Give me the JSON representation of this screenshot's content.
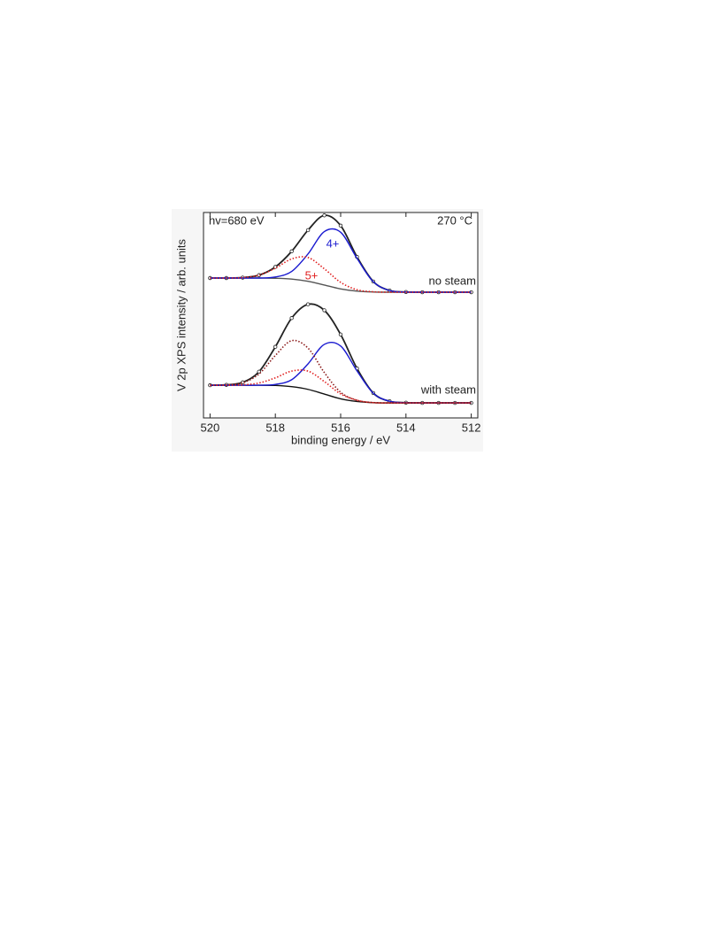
{
  "chart_data": {
    "type": "line",
    "xlabel": "binding energy / eV",
    "ylabel": "V 2p XPS intensity / arb. units",
    "xlim": [
      520.2,
      511.8
    ],
    "ylim": [
      0,
      10
    ],
    "xticks": [
      520,
      518,
      516,
      514,
      512
    ],
    "annotations": [
      "hv=680 eV",
      "270 °C",
      "4+",
      "5+",
      "no steam",
      "with steam"
    ],
    "annotation_colors": [
      "#222222",
      "#222222",
      "#1a1ad0",
      "#e02020",
      "#222222",
      "#222222"
    ],
    "x": [
      520,
      519.5,
      519,
      518.5,
      518,
      517.5,
      517,
      516.5,
      516,
      515.5,
      515,
      514.5,
      514,
      513.5,
      513,
      512.5,
      512
    ],
    "series": [
      {
        "color": "#222222",
        "style": "markers",
        "values": [
          6.81,
          6.81,
          6.83,
          6.95,
          7.35,
          8.11,
          9.14,
          9.86,
          9.36,
          7.84,
          6.64,
          6.2,
          6.13,
          6.12,
          6.12,
          6.12,
          6.12
        ]
      },
      {
        "color": "#555555",
        "style": "solid",
        "values": [
          6.81,
          6.81,
          6.81,
          6.81,
          6.8,
          6.76,
          6.65,
          6.47,
          6.28,
          6.17,
          6.13,
          6.12,
          6.12,
          6.12,
          6.12,
          6.12,
          6.12
        ]
      },
      {
        "color": "#1a1ad0",
        "style": "solid",
        "values": [
          6.81,
          6.81,
          6.81,
          6.81,
          6.86,
          7.13,
          7.98,
          9.07,
          9.04,
          7.77,
          6.63,
          6.2,
          6.13,
          6.12,
          6.12,
          6.12,
          6.12
        ]
      },
      {
        "color": "#e02020",
        "style": "dotted",
        "values": [
          6.81,
          6.81,
          6.83,
          6.95,
          7.29,
          7.74,
          7.81,
          7.26,
          6.6,
          6.24,
          6.14,
          6.12,
          6.12,
          6.12,
          6.12,
          6.12,
          6.12
        ]
      },
      {
        "color": "#222222",
        "style": "markers",
        "values": [
          1.59,
          1.61,
          1.73,
          2.25,
          3.46,
          4.86,
          5.53,
          5.24,
          4.06,
          2.41,
          1.21,
          0.81,
          0.74,
          0.73,
          0.73,
          0.73,
          0.73
        ]
      },
      {
        "color": "#111111",
        "style": "solid",
        "values": [
          1.59,
          1.59,
          1.59,
          1.59,
          1.58,
          1.52,
          1.39,
          1.16,
          0.93,
          0.8,
          0.74,
          0.73,
          0.73,
          0.73,
          0.73,
          0.73,
          0.73
        ]
      },
      {
        "color": "#1a1ad0",
        "style": "solid",
        "values": [
          1.59,
          1.59,
          1.59,
          1.59,
          1.63,
          1.86,
          2.63,
          3.58,
          3.5,
          2.29,
          1.2,
          0.81,
          0.74,
          0.73,
          0.73,
          0.73,
          0.73
        ]
      },
      {
        "color": "#8b1a1a",
        "style": "dotted",
        "values": [
          1.59,
          1.61,
          1.71,
          2.14,
          3.04,
          3.76,
          3.4,
          2.21,
          1.25,
          0.86,
          0.75,
          0.73,
          0.73,
          0.73,
          0.73,
          0.73,
          0.73
        ]
      },
      {
        "color": "#e02020",
        "style": "dotted",
        "values": [
          1.59,
          1.59,
          1.61,
          1.7,
          1.95,
          2.28,
          2.28,
          1.77,
          1.17,
          0.86,
          0.74,
          0.73,
          0.73,
          0.73,
          0.73,
          0.73,
          0.73
        ]
      }
    ]
  }
}
